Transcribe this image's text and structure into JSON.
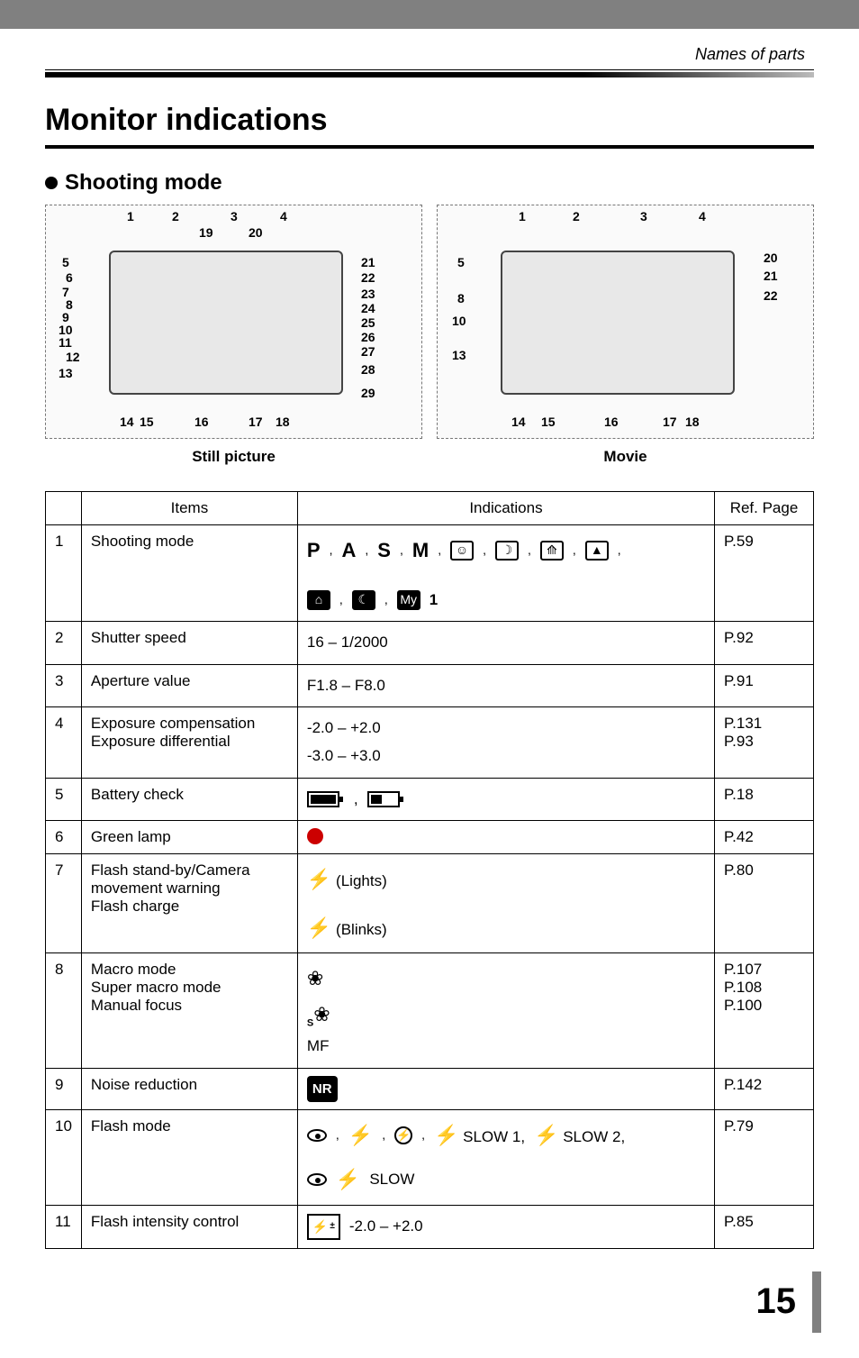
{
  "header": {
    "breadcrumb": "Names of parts",
    "title": "Monitor indications",
    "section": "Shooting mode"
  },
  "diagrams": {
    "still": {
      "caption": "Still picture",
      "top_numbers": [
        "1",
        "2",
        "3",
        "4"
      ],
      "top_inner": [
        "19",
        "20"
      ],
      "left_numbers": [
        "5",
        "6",
        "7",
        "8",
        "9",
        "10",
        "11",
        "12",
        "13"
      ],
      "right_numbers": [
        "21",
        "22",
        "23",
        "24",
        "25",
        "26",
        "27",
        "28",
        "29"
      ],
      "bottom_numbers": [
        "14",
        "15",
        "16",
        "17",
        "18"
      ]
    },
    "movie": {
      "caption": "Movie",
      "top_numbers": [
        "1",
        "2",
        "3",
        "4"
      ],
      "left_numbers": [
        "5",
        "8",
        "10",
        "13"
      ],
      "right_numbers": [
        "20",
        "21",
        "22"
      ],
      "bottom_numbers": [
        "14",
        "15",
        "16",
        "17",
        "18"
      ]
    }
  },
  "table": {
    "headers": {
      "items": "Items",
      "indications": "Indications",
      "ref": "Ref. Page"
    },
    "rows": [
      {
        "num": "1",
        "items": "Shooting mode",
        "indications": {
          "type": "modes",
          "letters": [
            "P",
            "A",
            "S",
            "M"
          ],
          "boxed_icons_count": 4,
          "filled_icons_count": 3,
          "trailing_label": "1"
        },
        "ref": "P.59"
      },
      {
        "num": "2",
        "items": "Shutter speed",
        "indications": {
          "type": "text",
          "value": "16 – 1/2000"
        },
        "ref": "P.92"
      },
      {
        "num": "3",
        "items": "Aperture value",
        "indications": {
          "type": "text",
          "value": "F1.8 – F8.0"
        },
        "ref": "P.91"
      },
      {
        "num": "4",
        "items_lines": [
          "Exposure compensation",
          "Exposure differential"
        ],
        "indications": {
          "type": "text_lines",
          "lines": [
            "-2.0 – +2.0",
            "-3.0 – +3.0"
          ]
        },
        "ref_lines": [
          "P.131",
          "P.93"
        ]
      },
      {
        "num": "5",
        "items": "Battery check",
        "indications": {
          "type": "battery"
        },
        "ref": "P.18"
      },
      {
        "num": "6",
        "items": "Green lamp",
        "indications": {
          "type": "red_dot"
        },
        "ref": "P.42"
      },
      {
        "num": "7",
        "items_lines": [
          "Flash stand-by/Camera movement warning",
          "Flash charge"
        ],
        "indications": {
          "type": "flash_states",
          "lights": "(Lights)",
          "blinks": "(Blinks)"
        },
        "ref": "P.80"
      },
      {
        "num": "8",
        "items_lines": [
          "Macro mode",
          "Super macro mode",
          "Manual focus"
        ],
        "indications": {
          "type": "macro",
          "mf_label": "MF"
        },
        "ref_lines": [
          "P.107",
          "P.108",
          "P.100"
        ]
      },
      {
        "num": "9",
        "items": "Noise reduction",
        "indications": {
          "type": "nr",
          "label": "NR"
        },
        "ref": "P.142"
      },
      {
        "num": "10",
        "items": "Flash mode",
        "indications": {
          "type": "flash_mode",
          "slow1": "SLOW 1,",
          "slow2": "SLOW 2,",
          "slow": "SLOW"
        },
        "ref": "P.79"
      },
      {
        "num": "11",
        "items": "Flash intensity control",
        "indications": {
          "type": "flash_intensity",
          "value": "-2.0 – +2.0"
        },
        "ref": "P.85"
      }
    ]
  },
  "page_number": "15",
  "colors": {
    "header_bar": "#808080",
    "text": "#000000",
    "red_dot": "#cc0000"
  }
}
